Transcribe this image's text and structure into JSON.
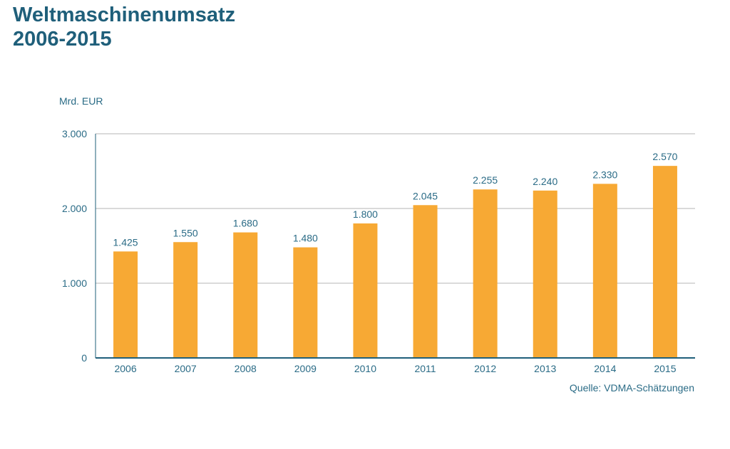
{
  "title_line1": "Weltmaschinenumsatz",
  "title_line2": "2006-2015",
  "unit_label": "Mrd. EUR",
  "source": "Quelle: VDMA-Schätzungen",
  "colors": {
    "bar": "#f7a934",
    "title": "#1f5f7a",
    "text": "#2a6b86",
    "grid": "#b5b5b5",
    "axis": "#1f5f7a"
  },
  "chart_data": {
    "type": "bar",
    "categories": [
      "2006",
      "2007",
      "2008",
      "2009",
      "2010",
      "2011",
      "2012",
      "2013",
      "2014",
      "2015"
    ],
    "values": [
      1425,
      1550,
      1680,
      1480,
      1800,
      2045,
      2255,
      2240,
      2330,
      2570
    ],
    "value_labels": [
      "1.425",
      "1.550",
      "1.680",
      "1.480",
      "1.800",
      "2.045",
      "2.255",
      "2.240",
      "2.330",
      "2.570"
    ],
    "ylim": [
      0,
      3000
    ],
    "yticks": [
      0,
      1000,
      2000,
      3000
    ],
    "ytick_labels": [
      "0",
      "1.000",
      "2.000",
      "3.000"
    ],
    "grid": true,
    "title": "Weltmaschinenumsatz 2006-2015",
    "ylabel": "Mrd. EUR",
    "xlabel": ""
  }
}
